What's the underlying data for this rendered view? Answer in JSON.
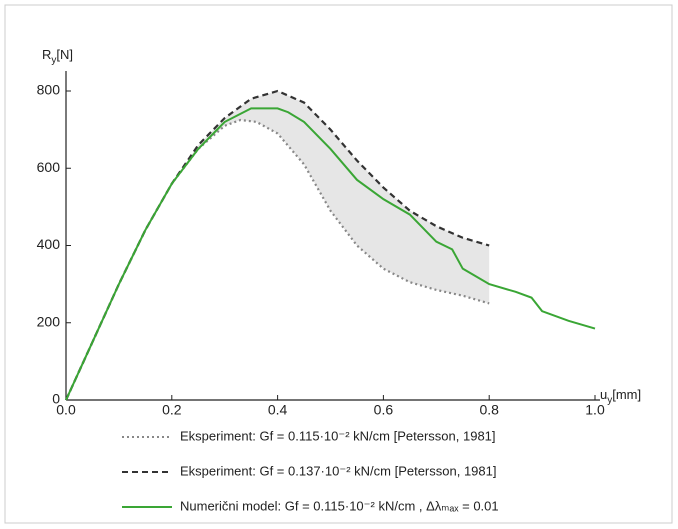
{
  "chart_data": {
    "type": "line",
    "xlabel": {
      "symbol": "u",
      "subscript": "y",
      "unit": "[mm]"
    },
    "ylabel": {
      "symbol": "R",
      "subscript": "y",
      "unit": "[N]"
    },
    "xlim": [
      0,
      1.0
    ],
    "ylim": [
      0,
      800
    ],
    "xticks": [
      {
        "value": 0,
        "label": "0.0"
      },
      0.2,
      0.4,
      0.6,
      0.8,
      {
        "value": 1.0,
        "label": "1.0"
      }
    ],
    "yticks": [
      0,
      200,
      400,
      600,
      800
    ],
    "shade_between": [
      0,
      1
    ],
    "shade_color": "#e6e6e6",
    "series": [
      {
        "name": "Eksperiment: Gf = 0.115·10⁻² kN/cm [Petersson, 1981]",
        "color": "#888888",
        "style": "dotted",
        "x": [
          0,
          0.05,
          0.1,
          0.15,
          0.2,
          0.25,
          0.3,
          0.33,
          0.36,
          0.4,
          0.45,
          0.5,
          0.55,
          0.6,
          0.65,
          0.7,
          0.75,
          0.8
        ],
        "values": [
          0,
          150,
          300,
          440,
          560,
          650,
          710,
          725,
          720,
          690,
          610,
          490,
          400,
          340,
          305,
          285,
          270,
          250
        ]
      },
      {
        "name": "Eksperiment: Gf = 0.137·10⁻² kN/cm [Petersson, 1981]",
        "color": "#333333",
        "style": "dashed",
        "x": [
          0,
          0.05,
          0.1,
          0.15,
          0.2,
          0.25,
          0.3,
          0.35,
          0.4,
          0.45,
          0.5,
          0.55,
          0.6,
          0.65,
          0.7,
          0.75,
          0.8
        ],
        "values": [
          0,
          150,
          300,
          440,
          560,
          660,
          730,
          780,
          800,
          770,
          700,
          620,
          550,
          490,
          450,
          420,
          400
        ]
      },
      {
        "name": "Numerični model: Gf = 0.115·10⁻² kN/cm , Δλₘₐₓ = 0.01",
        "color": "#3aa635",
        "style": "solid",
        "x": [
          0,
          0.05,
          0.1,
          0.15,
          0.2,
          0.25,
          0.3,
          0.35,
          0.4,
          0.42,
          0.45,
          0.5,
          0.55,
          0.6,
          0.65,
          0.7,
          0.73,
          0.75,
          0.8,
          0.85,
          0.88,
          0.9,
          0.95,
          1.0
        ],
        "values": [
          0,
          150,
          300,
          440,
          560,
          650,
          720,
          755,
          755,
          745,
          720,
          650,
          570,
          520,
          480,
          410,
          390,
          340,
          300,
          280,
          265,
          230,
          205,
          185
        ]
      }
    ]
  }
}
